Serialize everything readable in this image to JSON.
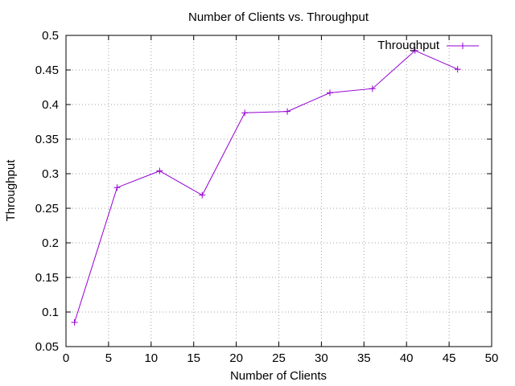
{
  "chart_data": {
    "type": "line",
    "title": "Number of Clients vs. Throughput",
    "xlabel": "Number of Clients",
    "ylabel": "Throughput",
    "xlim": [
      0,
      50
    ],
    "ylim": [
      0.05,
      0.5
    ],
    "xticks": [
      0,
      5,
      10,
      15,
      20,
      25,
      30,
      35,
      40,
      45,
      50
    ],
    "yticks": [
      0.05,
      0.1,
      0.15,
      0.2,
      0.25,
      0.3,
      0.35,
      0.4,
      0.45,
      0.5
    ],
    "xtick_labels": [
      "0",
      "5",
      "10",
      "15",
      "20",
      "25",
      "30",
      "35",
      "40",
      "45",
      "50"
    ],
    "ytick_labels": [
      "0.05",
      "0.1",
      "0.15",
      "0.2",
      "0.25",
      "0.3",
      "0.35",
      "0.4",
      "0.45",
      "0.5"
    ],
    "grid": true,
    "legend_position": "top-right",
    "series": [
      {
        "name": "Throughput",
        "color": "#9400d3",
        "marker": "plus",
        "x": [
          1,
          6,
          11,
          16,
          21,
          26,
          31,
          36,
          41,
          46
        ],
        "y": [
          0.085,
          0.28,
          0.304,
          0.269,
          0.388,
          0.39,
          0.417,
          0.423,
          0.478,
          0.451
        ]
      }
    ]
  }
}
